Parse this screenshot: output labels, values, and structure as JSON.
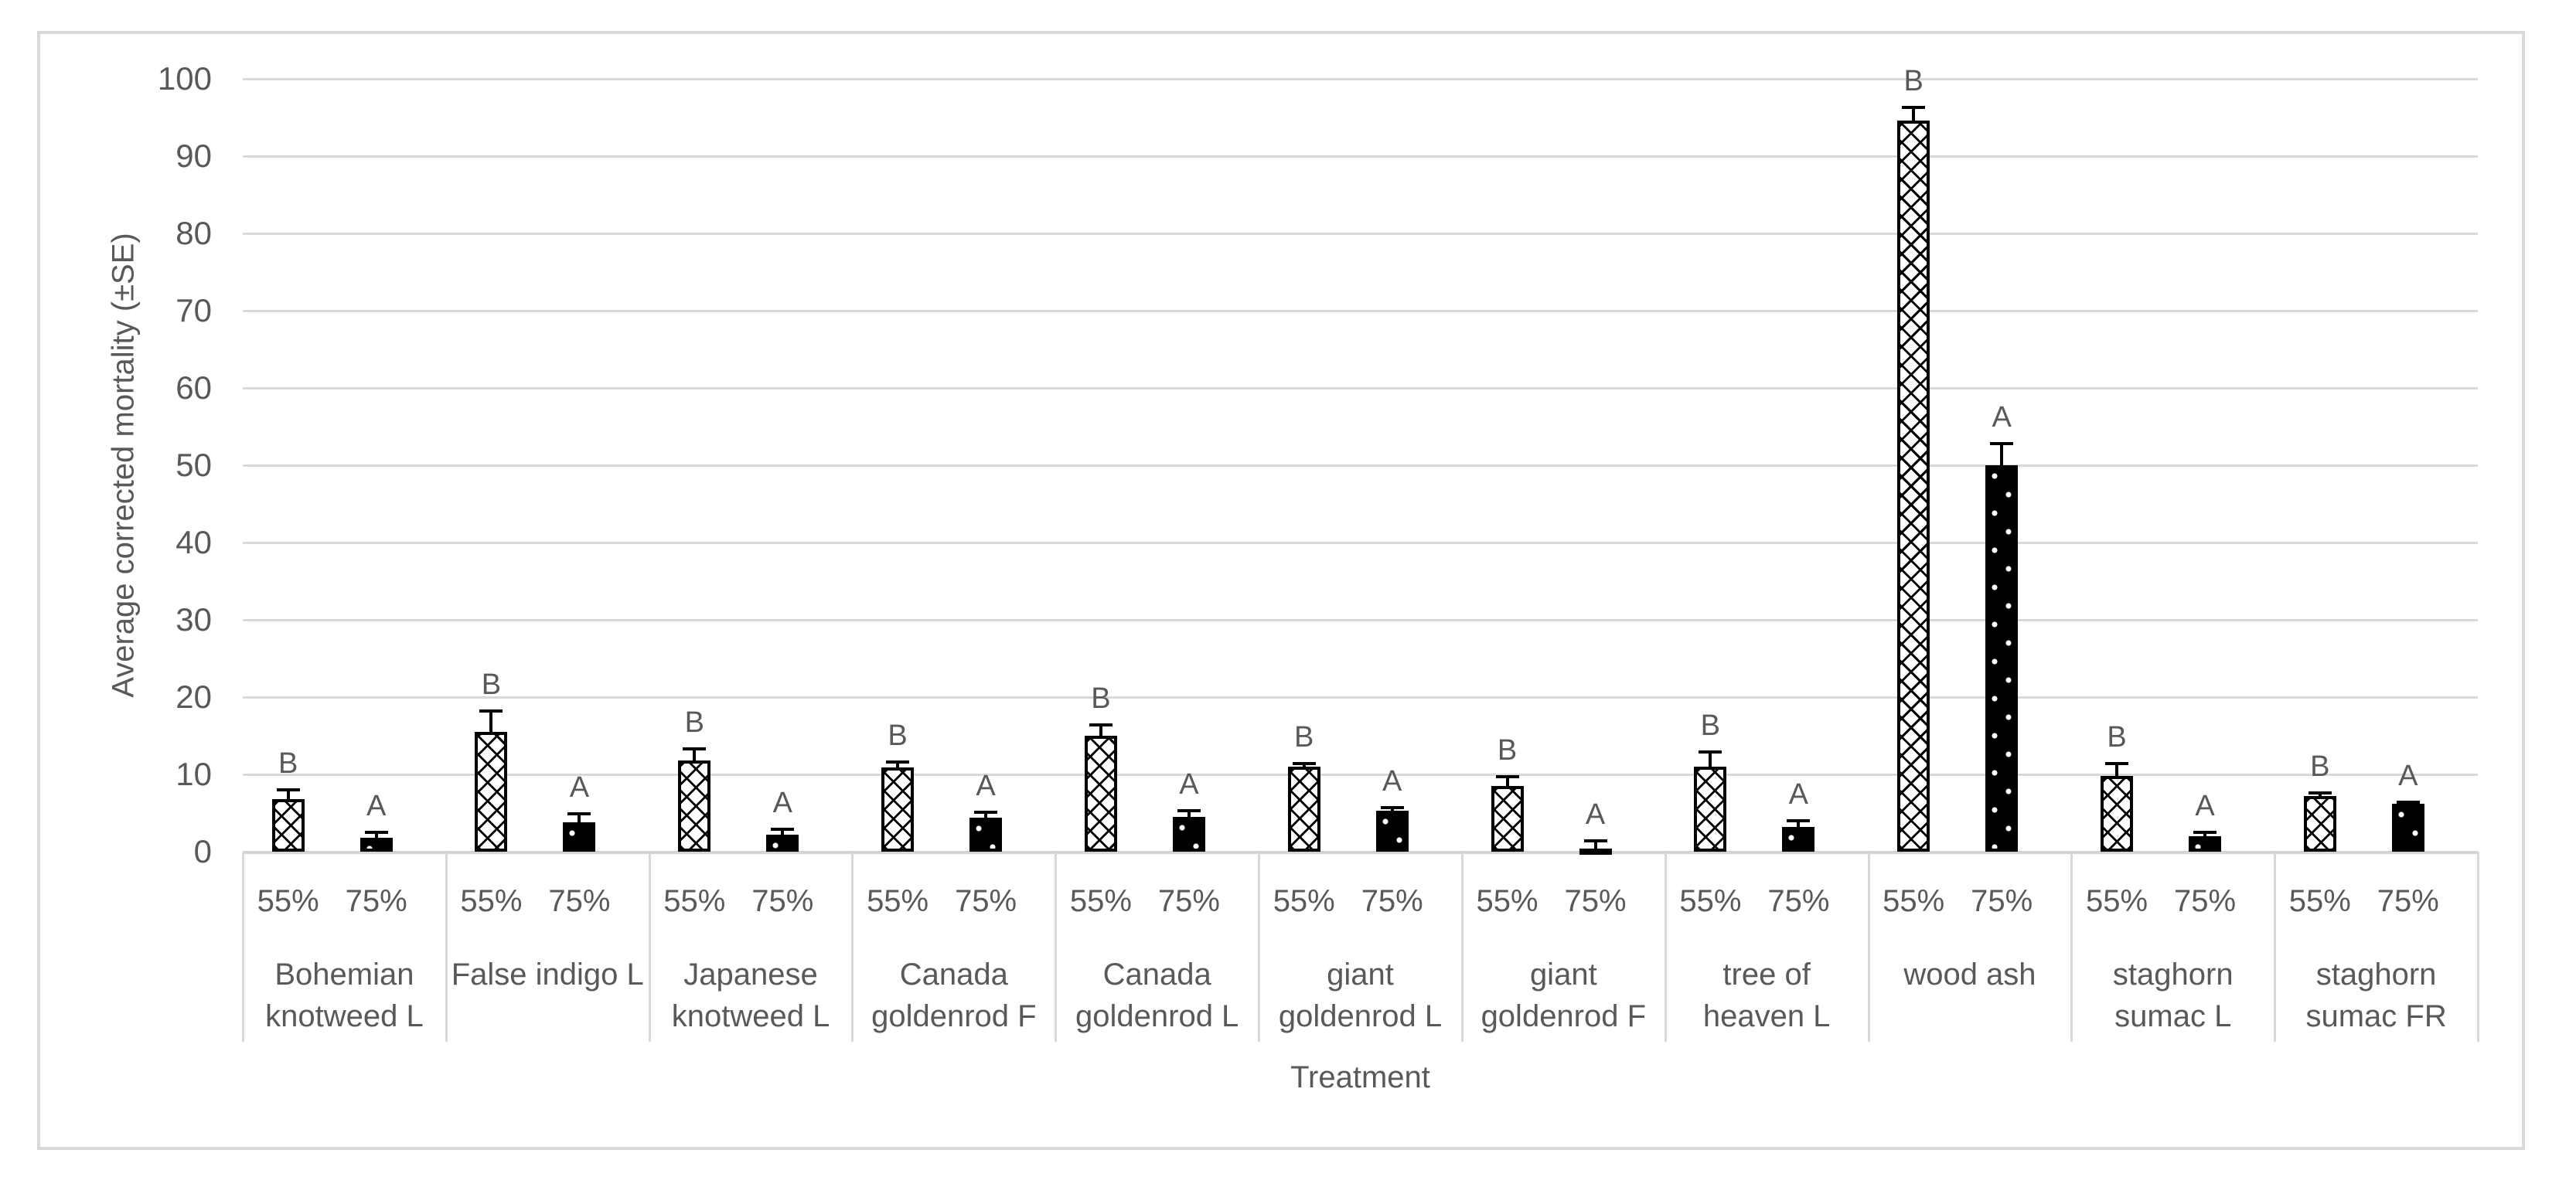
{
  "chart": {
    "y_axis_title": "Average corrected mortality (±SE)",
    "x_axis_title": "Treatment"
  },
  "chart_data": {
    "type": "bar",
    "title": "",
    "xlabel": "Treatment",
    "ylabel": "Average corrected mortality (±SE)",
    "ylim": [
      0,
      100
    ],
    "yticks": [
      0,
      10,
      20,
      30,
      40,
      50,
      60,
      70,
      80,
      90,
      100
    ],
    "grid": true,
    "legend_position": "none",
    "error_bar_style": "upper SE whisker with cap",
    "subcategories": [
      "55%",
      "75%"
    ],
    "categories": [
      "Bohemian knotweed L",
      "False indigo L",
      "Japanese knotweed L",
      "Canada goldenrod F",
      "Canada goldenrod L",
      "giant goldenrod L",
      "giant goldenrod F",
      "tree of heaven L",
      "wood ash",
      "staghorn sumac L",
      "staghorn sumac FR"
    ],
    "category_label_lines": [
      [
        "Bohemian",
        "knotweed L"
      ],
      [
        "False indigo L",
        ""
      ],
      [
        "Japanese",
        "knotweed L"
      ],
      [
        "Canada",
        "goldenrod F"
      ],
      [
        "Canada",
        "goldenrod L"
      ],
      [
        "giant",
        "goldenrod L"
      ],
      [
        "giant",
        "goldenrod F"
      ],
      [
        "tree of",
        "heaven L"
      ],
      [
        "wood ash",
        ""
      ],
      [
        "staghorn",
        "sumac  L"
      ],
      [
        "staghorn",
        "sumac FR"
      ]
    ],
    "series": [
      {
        "name": "55%",
        "pattern": "white with black diagonal crosshatch",
        "values": [
          6.8,
          15.5,
          11.8,
          10.9,
          15.0,
          11.0,
          8.5,
          11.0,
          94.6,
          9.8,
          7.2
        ],
        "se": [
          1.2,
          2.7,
          1.5,
          0.7,
          1.4,
          0.4,
          1.2,
          1.9,
          1.7,
          1.6,
          0.4
        ],
        "letters": [
          "B",
          "B",
          "B",
          "B",
          "B",
          "B",
          "B",
          "B",
          "B",
          "B",
          "B"
        ]
      },
      {
        "name": "75%",
        "pattern": "black with white dots",
        "values": [
          1.8,
          3.8,
          2.2,
          4.4,
          4.5,
          5.3,
          0.4,
          3.2,
          50.0,
          2.0,
          6.2
        ],
        "se": [
          0.7,
          1.1,
          0.7,
          0.7,
          0.8,
          0.4,
          1.0,
          0.8,
          2.8,
          0.5,
          0.2
        ],
        "letters": [
          "A",
          "A",
          "A",
          "A",
          "A",
          "A",
          "A",
          "A",
          "A",
          "A",
          "A"
        ]
      }
    ]
  },
  "colors": {
    "text": "#595959",
    "gridline": "#d9d9d9",
    "frame_border": "#d9d9d9",
    "bar_outline": "#000000",
    "bar55_fill": "#ffffff",
    "bar75_fill": "#000000"
  }
}
